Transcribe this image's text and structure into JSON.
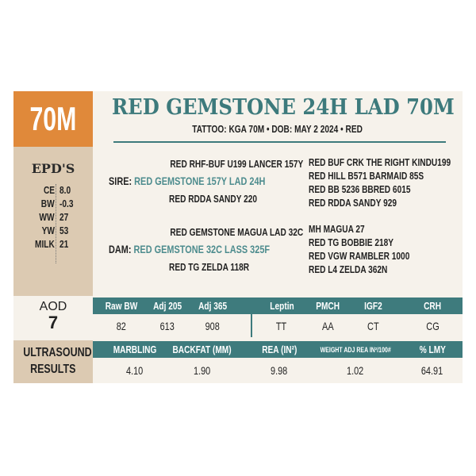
{
  "lot": "70M",
  "title": "RED GEMSTONE 24H LAD 70M",
  "subtitle": "TATTOO: KGA 70M  •  DOB: MAY 2 2024  •  RED",
  "epds": {
    "heading": "EPD'S",
    "items": [
      {
        "label": "CE",
        "value": "8.0"
      },
      {
        "label": "BW",
        "value": "-0.3"
      },
      {
        "label": "WW",
        "value": "27"
      },
      {
        "label": "YW",
        "value": "53"
      },
      {
        "label": "MILK",
        "value": "21"
      }
    ]
  },
  "pedigree": {
    "sire_label": "SIRE:",
    "sire": "RED GEMSTONE 157Y LAD 24H",
    "sire_sire": "RED RHF-BUF U199 LANCER 157Y",
    "sire_dam": "RED RDDA SANDY 220",
    "sire_ggp": [
      "RED BUF CRK THE RIGHT KINDU199",
      "RED HILL B571 BARMAID 85S",
      "RED BB 5236 BBRED 6015",
      "RED RDDA SANDY 929"
    ],
    "dam_label": "DAM:",
    "dam": "RED GEMSTONE 32C LASS 325F",
    "dam_sire": "RED GEMSTONE MAGUA LAD 32C",
    "dam_dam": "RED TG ZELDA 118R",
    "dam_ggp": [
      "MH MAGUA 27",
      "RED TG BOBBIE 218Y",
      "RED VGW RAMBLER 1000",
      "RED L4 ZELDA 362N"
    ]
  },
  "aod": {
    "label": "AOD",
    "value": "7"
  },
  "weights": {
    "headers": [
      "Raw BW",
      "Adj 205",
      "Adj 365",
      "Leptin",
      "PMCH",
      "IGF2",
      "CRH"
    ],
    "values": [
      "82",
      "613",
      "908",
      "TT",
      "AA",
      "CT",
      "CG"
    ]
  },
  "ultrasound": {
    "label1": "ULTRASOUND",
    "label2": "RESULTS",
    "headers": [
      "MARBLING",
      "BACKFAT (MM)",
      "REA (IN²)",
      "WEIGHT ADJ REA IN²/100#",
      "% LMY"
    ],
    "values": [
      "4.10",
      "1.90",
      "9.98",
      "1.02",
      "64.91"
    ]
  },
  "colors": {
    "teal": "#3e7b7d",
    "orange": "#e0893a",
    "tan": "#dccab2",
    "cream": "#f6f2eb"
  }
}
